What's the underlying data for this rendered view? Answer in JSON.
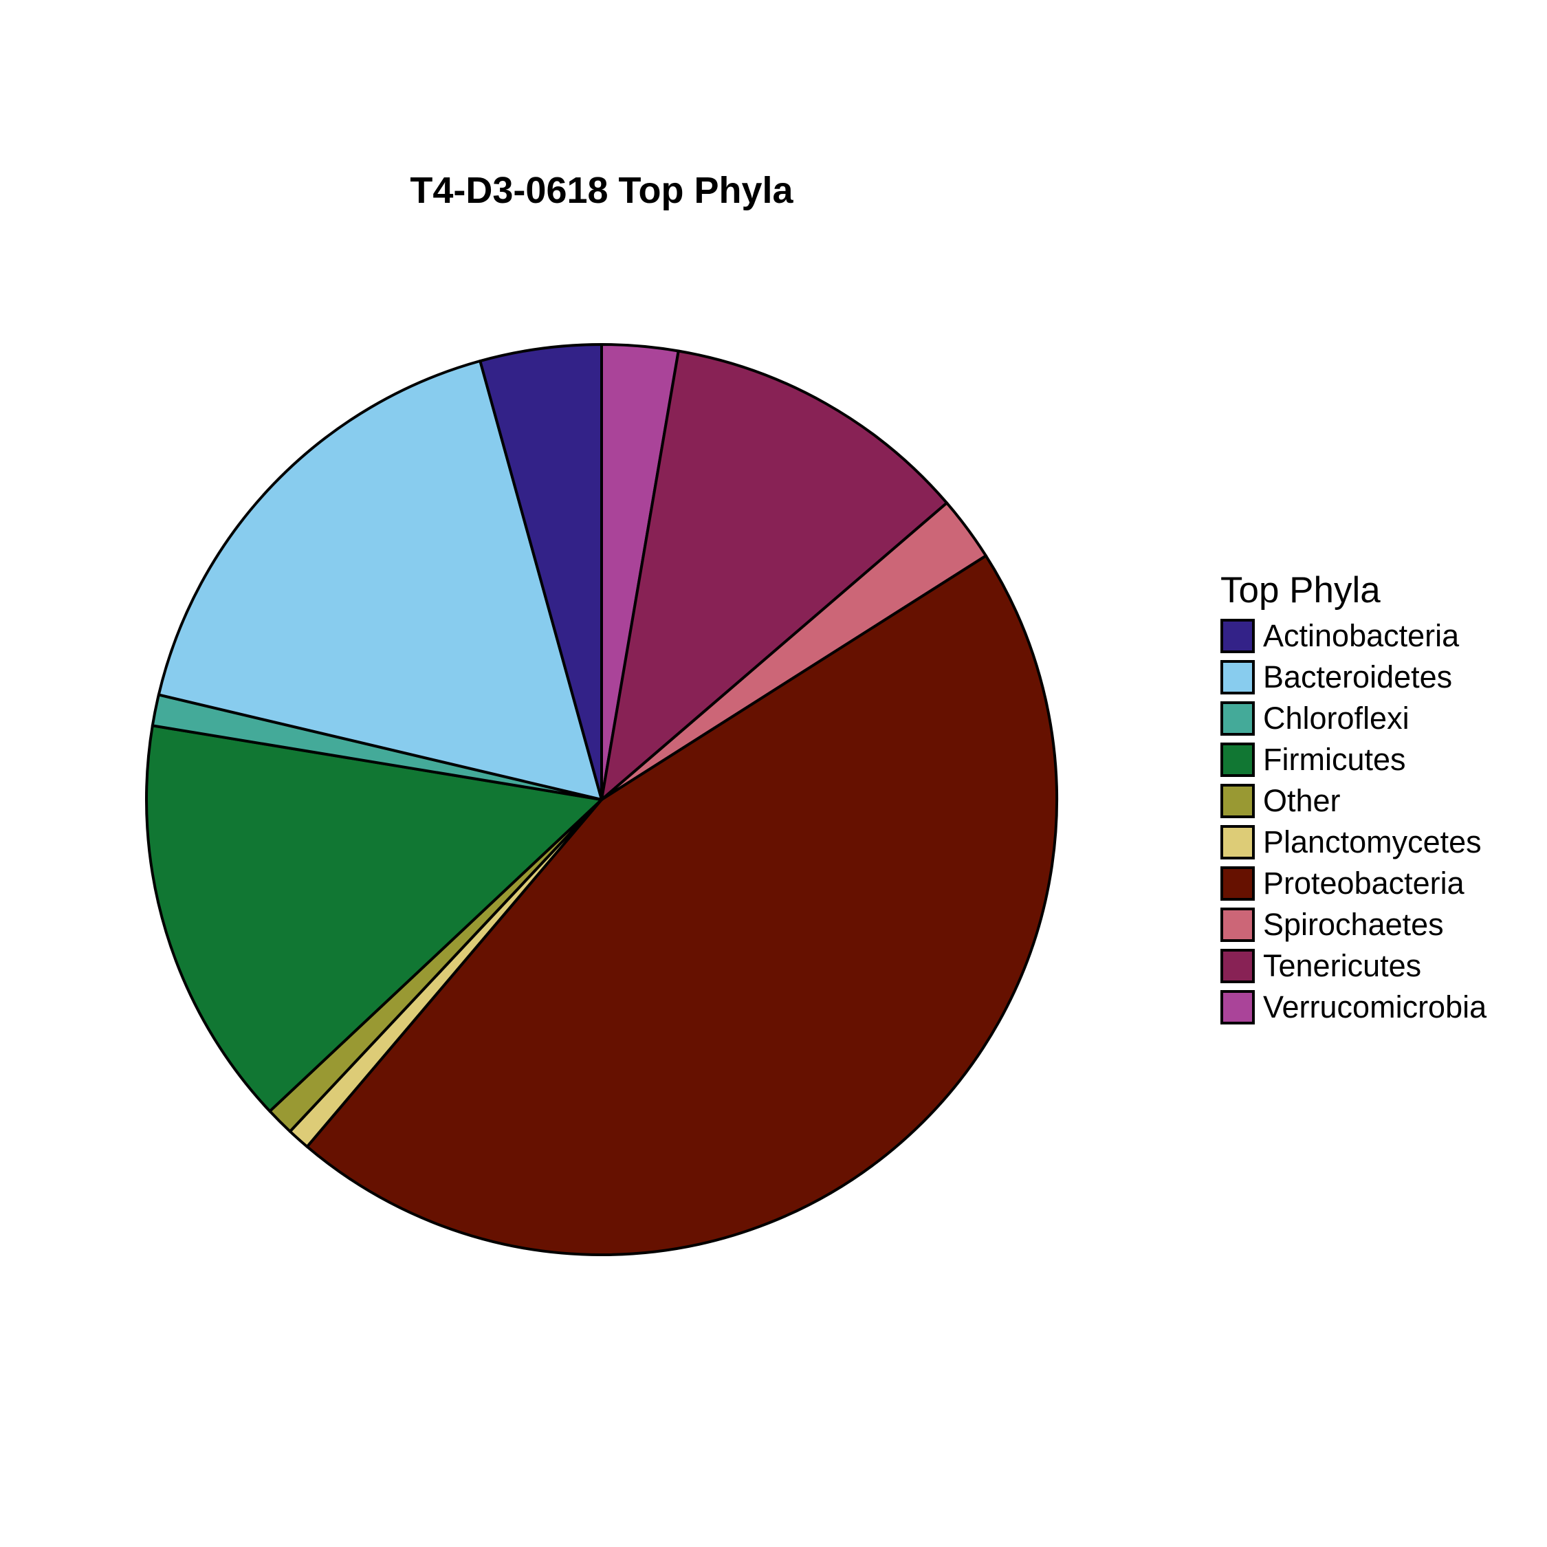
{
  "chart_data": {
    "type": "pie",
    "title": "T4-D3-0618 Top Phyla",
    "legend": {
      "title": "Top Phyla",
      "placement": "right"
    },
    "start": "top",
    "direction": "clockwise",
    "slices": [
      {
        "label": "Verrucomicrobia",
        "value": 2.7,
        "color": "#AA4499"
      },
      {
        "label": "Tenericutes",
        "value": 11.0,
        "color": "#882255"
      },
      {
        "label": "Spirochaetes",
        "value": 2.3,
        "color": "#CC6677"
      },
      {
        "label": "Proteobacteria",
        "value": 45.2,
        "color": "#661100"
      },
      {
        "label": "Planctomycetes",
        "value": 0.8,
        "color": "#DDCC77"
      },
      {
        "label": "Other",
        "value": 1.0,
        "color": "#999933"
      },
      {
        "label": "Firmicutes",
        "value": 14.6,
        "color": "#117733"
      },
      {
        "label": "Chloroflexi",
        "value": 1.1,
        "color": "#44AA99"
      },
      {
        "label": "Bacteroidetes",
        "value": 17.0,
        "color": "#88CCEE"
      },
      {
        "label": "Actinobacteria",
        "value": 4.3,
        "color": "#332288"
      }
    ],
    "legend_order": [
      "Actinobacteria",
      "Bacteroidetes",
      "Chloroflexi",
      "Firmicutes",
      "Other",
      "Planctomycetes",
      "Proteobacteria",
      "Spirochaetes",
      "Tenericutes",
      "Verrucomicrobia"
    ]
  }
}
